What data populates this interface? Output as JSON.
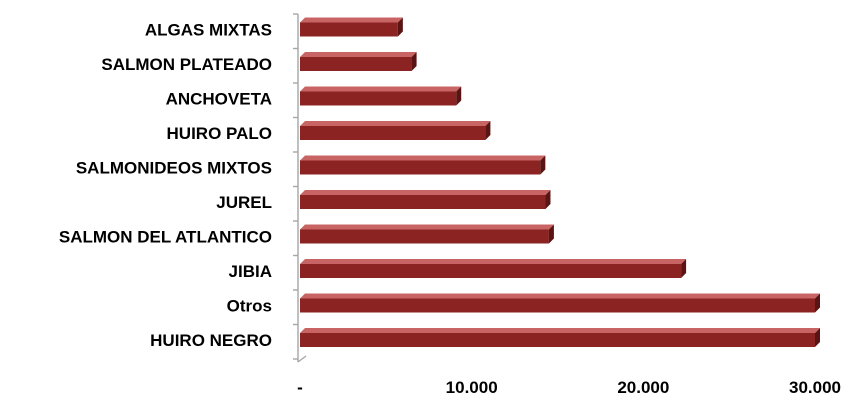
{
  "chart_data": {
    "type": "bar",
    "orientation": "horizontal",
    "style": "3d",
    "categories": [
      "HUIRO NEGRO",
      "Otros",
      "JIBIA",
      "SALMON DEL ATLANTICO",
      "JUREL",
      "SALMONIDEOS MIXTOS",
      "HUIRO PALO",
      "ANCHOVETA",
      "SALMON PLATEADO",
      "ALGAS MIXTAS"
    ],
    "series": [
      {
        "values": [
          30000,
          30000,
          22200,
          14500,
          14300,
          14000,
          10800,
          9100,
          6500,
          5700
        ]
      }
    ],
    "xlim": [
      0,
      30000
    ],
    "xticks": [
      0,
      10000,
      20000,
      30000
    ],
    "xtick_labels": [
      "-",
      "10.000",
      "20.000",
      "30.000"
    ],
    "title": "",
    "xlabel": "",
    "ylabel": "",
    "grid": false,
    "legend": "none",
    "colors": {
      "bar_front": "#8b2323",
      "bar_top": "#c96464",
      "bar_side": "#5a1414",
      "axis": "#a6a6a6"
    }
  }
}
